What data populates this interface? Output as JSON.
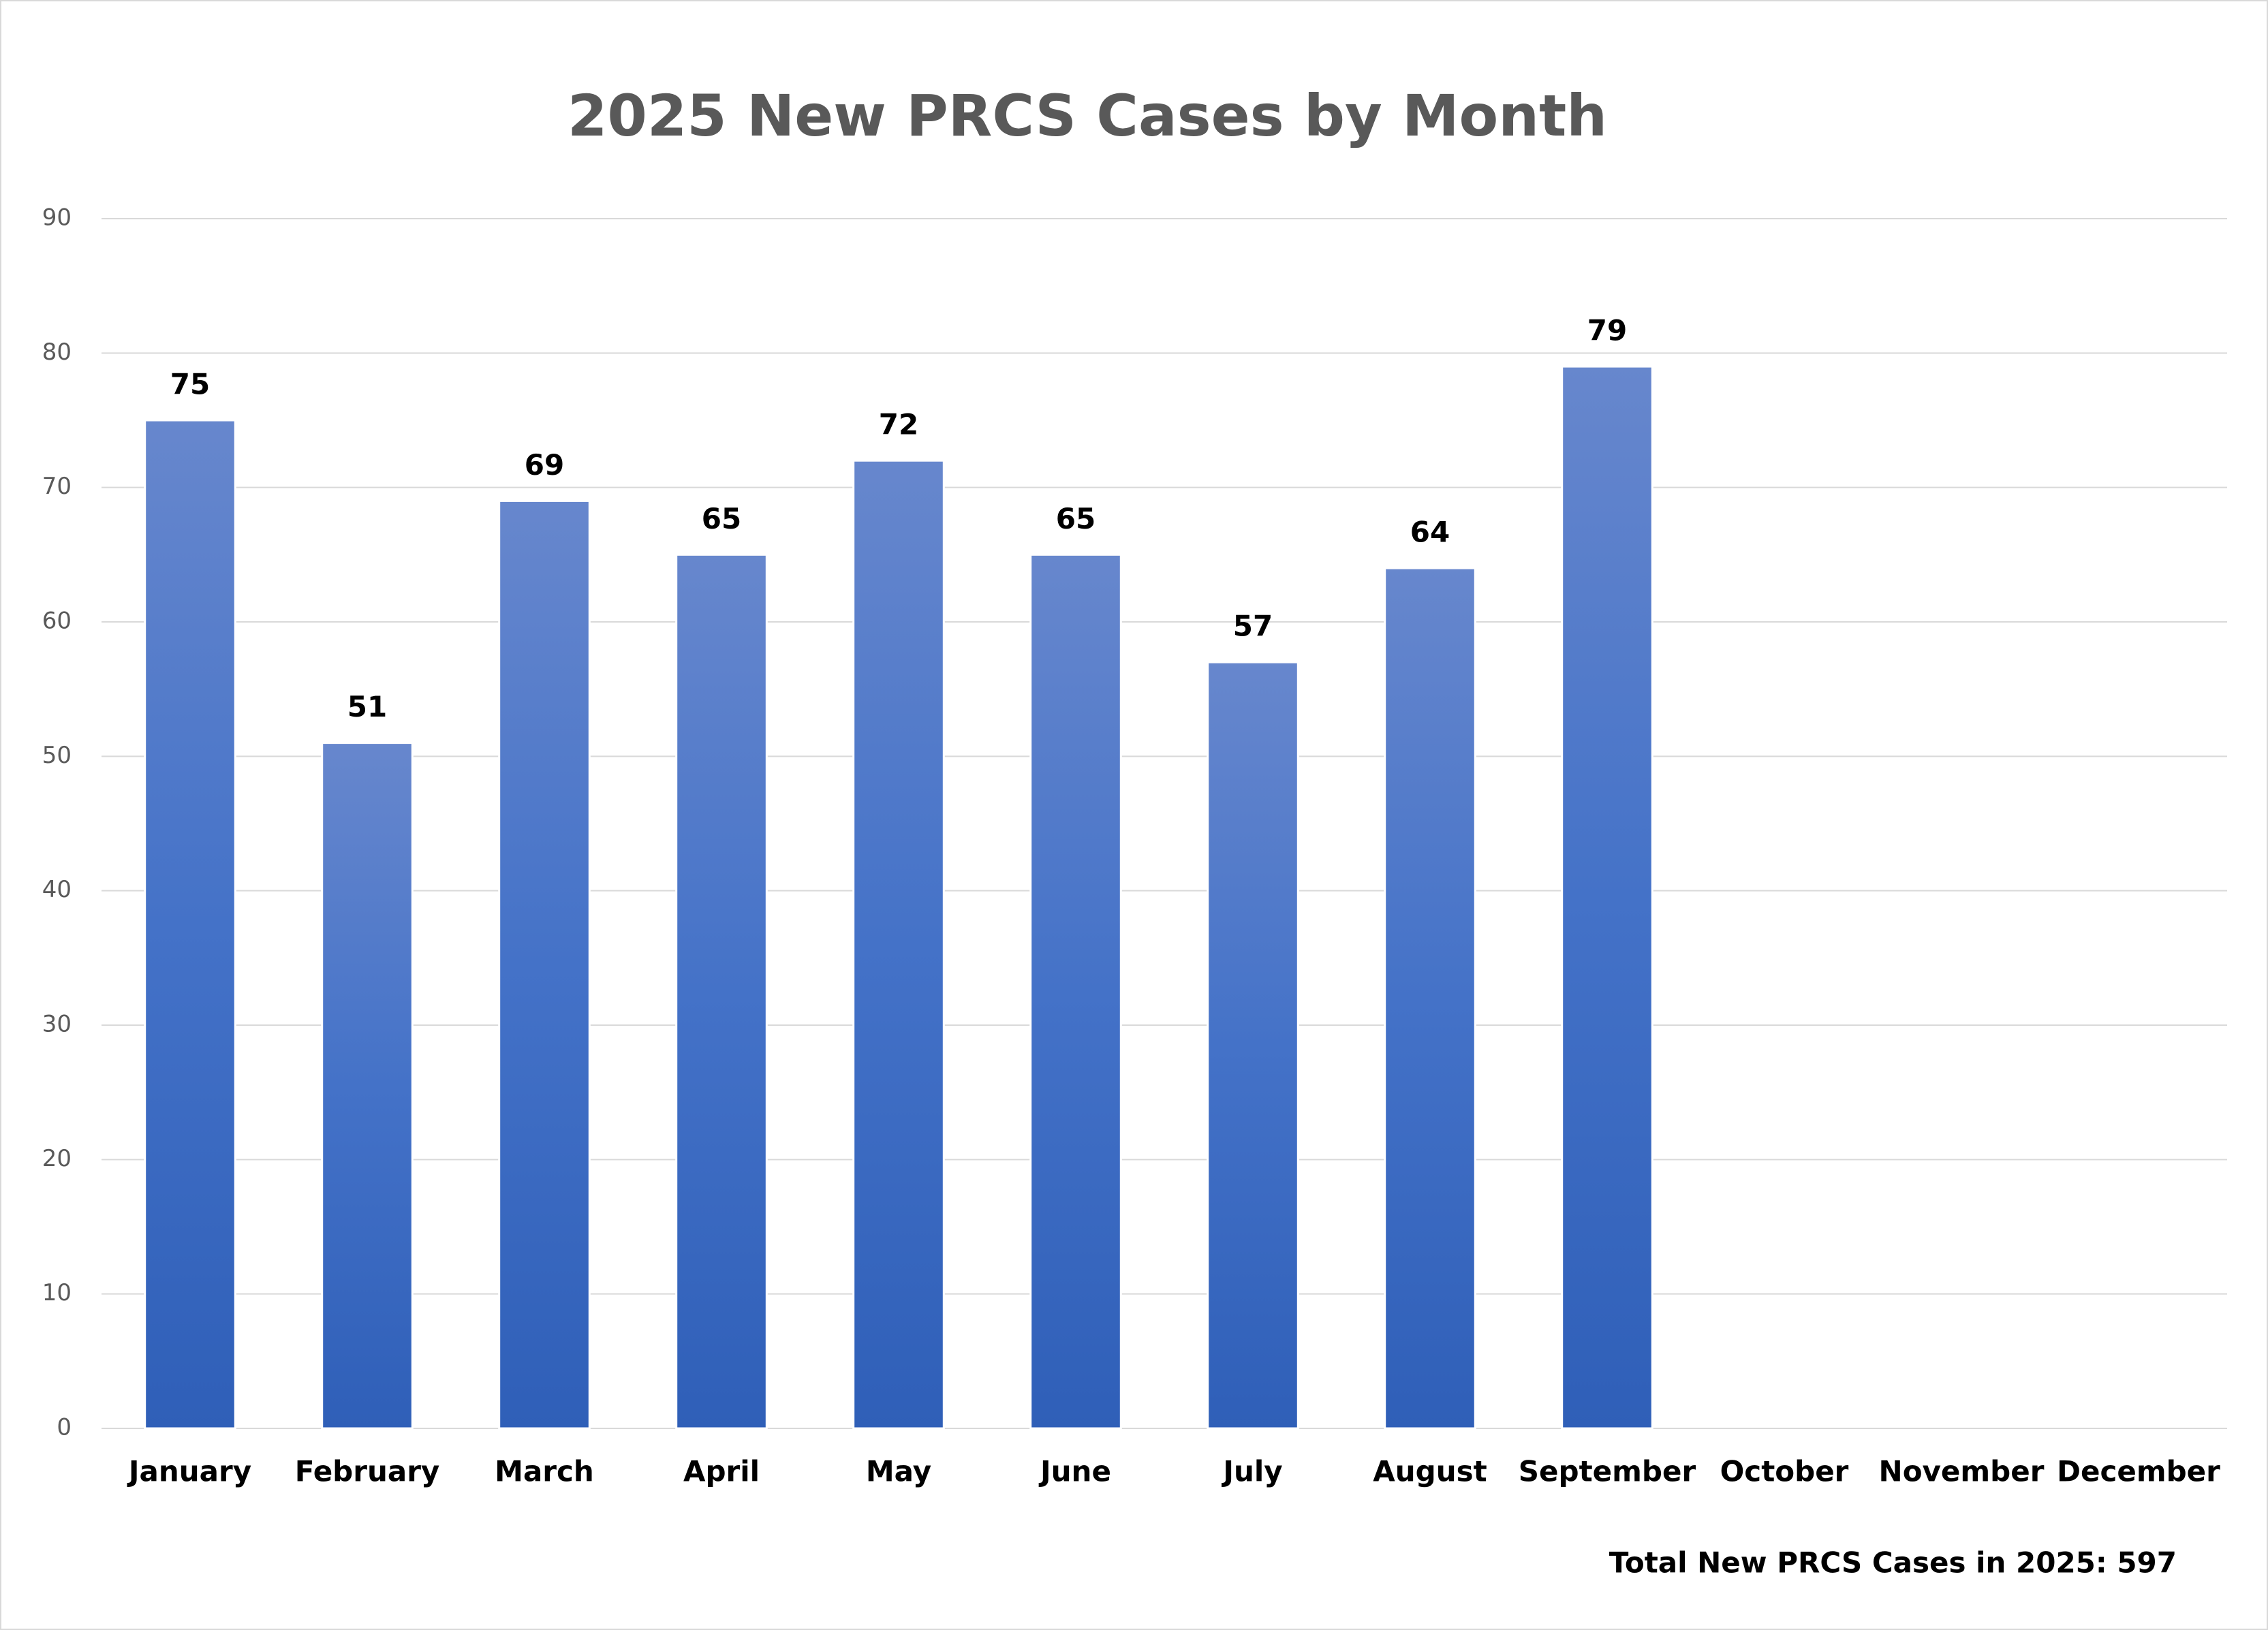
{
  "chart_data": {
    "type": "bar",
    "title": "2025 New PRCS Cases by Month",
    "categories": [
      "January",
      "February",
      "March",
      "April",
      "May",
      "June",
      "July",
      "August",
      "September",
      "October",
      "November",
      "December"
    ],
    "values": [
      75,
      51,
      69,
      65,
      72,
      65,
      57,
      64,
      79,
      null,
      null,
      null
    ],
    "color": "#4472c4",
    "ylim": [
      0,
      90
    ],
    "yticks": [
      0,
      10,
      20,
      30,
      40,
      50,
      60,
      70,
      80,
      90
    ],
    "grid": true,
    "annotation": "Total New PRCS Cases in 2025: 597"
  }
}
